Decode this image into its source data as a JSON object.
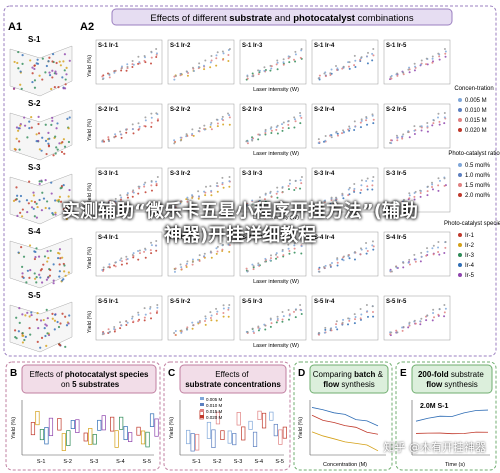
{
  "panel_a": {
    "label_a1": "A1",
    "label_a2": "A2",
    "title_parts": [
      "Effects of different ",
      "substrate",
      " and ",
      "photocatalyst",
      " combinations"
    ],
    "rows": [
      {
        "label": "S-1",
        "cells": [
          "S-1 Ir-1",
          "S-1 Ir-2",
          "S-1 Ir-3",
          "S-1 Ir-4",
          "S-1 Ir-5"
        ]
      },
      {
        "label": "S-2",
        "cells": [
          "S-2 Ir-1",
          "S-2 Ir-2",
          "S-2 Ir-3",
          "S-2 Ir-4",
          "S-2 Ir-5"
        ]
      },
      {
        "label": "S-3",
        "cells": [
          "S-3 Ir-1",
          "S-3 Ir-2",
          "S-3 Ir-3",
          "S-3 Ir-4",
          "S-3 Ir-5"
        ]
      },
      {
        "label": "S-4",
        "cells": [
          "S-4 Ir-1",
          "S-4 Ir-2",
          "S-4 Ir-3",
          "S-4 Ir-4",
          "S-4 Ir-5"
        ]
      },
      {
        "label": "S-5",
        "cells": [
          "S-5 Ir-1",
          "S-5 Ir-2",
          "S-5 Ir-3",
          "S-5 Ir-4",
          "S-5 Ir-5"
        ]
      }
    ],
    "x_axis_label": "Laser intensity (W)",
    "y_axis_label": "Yield (%)",
    "legends": [
      {
        "title": "Concen-tration",
        "items": [
          "0.005 M",
          "0.010 M",
          "0.015 M",
          "0.020 M"
        ]
      },
      {
        "title": "Photo-catalyst ratio",
        "items": [
          "0.5 mol%",
          "1.0 mol%",
          "1.5 mol%",
          "2.0 mol%"
        ]
      },
      {
        "title": "Photo-catalyst species",
        "items": [
          "Ir-1",
          "Ir-2",
          "Ir-3",
          "Ir-4",
          "Ir-5"
        ]
      }
    ]
  },
  "panel_b": {
    "label": "B",
    "title_parts": [
      "Effects of ",
      "photocatalyst species",
      " on ",
      "5 substrates"
    ],
    "categories": [
      "S-1",
      "S-2",
      "S-3",
      "S-4",
      "S-5"
    ],
    "y_axis_label": "Yield (%)"
  },
  "panel_c": {
    "label": "C",
    "title_parts": [
      "Effects of ",
      "substrate concentrations"
    ],
    "categories": [
      "S-1",
      "S-2",
      "S-3",
      "S-4",
      "S-5"
    ],
    "legend": [
      "0.005 M",
      "0.010 M",
      "0.015 M",
      "0.020 M"
    ],
    "y_axis_label": "Yield (%)"
  },
  "panel_d": {
    "label": "D",
    "title_parts": [
      "Comparing ",
      "batch",
      " & ",
      "flow",
      " synthesis"
    ],
    "x_axis_label": "Concentration (M)",
    "y_axis_label": "Yield (%)"
  },
  "panel_e": {
    "label": "E",
    "title_parts": [
      "200-fold",
      " substrate ",
      "flow",
      " synthesis"
    ],
    "annotation": "2.0M S-1",
    "x_axis_label": "Time (s)"
  },
  "overlay": "实测辅助“微乐卡五星小程序开挂方法”(辅助神器)开挂详细教程",
  "watermark": "知乎 @木有开挂神器"
}
